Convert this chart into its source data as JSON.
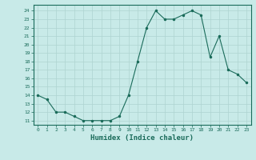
{
  "x": [
    0,
    1,
    2,
    3,
    4,
    5,
    6,
    7,
    8,
    9,
    10,
    11,
    12,
    13,
    14,
    15,
    16,
    17,
    18,
    19,
    20,
    21,
    22,
    23
  ],
  "y": [
    14,
    13.5,
    12,
    12,
    11.5,
    11,
    11,
    11,
    11,
    11.5,
    14,
    18,
    22,
    24,
    23,
    23,
    23.5,
    24,
    23.5,
    18.5,
    21,
    17,
    16.5,
    15.5
  ],
  "line_color": "#1a6b5a",
  "marker_color": "#1a6b5a",
  "bg_color": "#c8eae8",
  "grid_color": "#aed4d0",
  "xlabel": "Humidex (Indice chaleur)",
  "ylabel_ticks": [
    11,
    12,
    13,
    14,
    15,
    16,
    17,
    18,
    19,
    20,
    21,
    22,
    23,
    24
  ],
  "xlim": [
    -0.5,
    23.5
  ],
  "ylim": [
    10.5,
    24.7
  ]
}
